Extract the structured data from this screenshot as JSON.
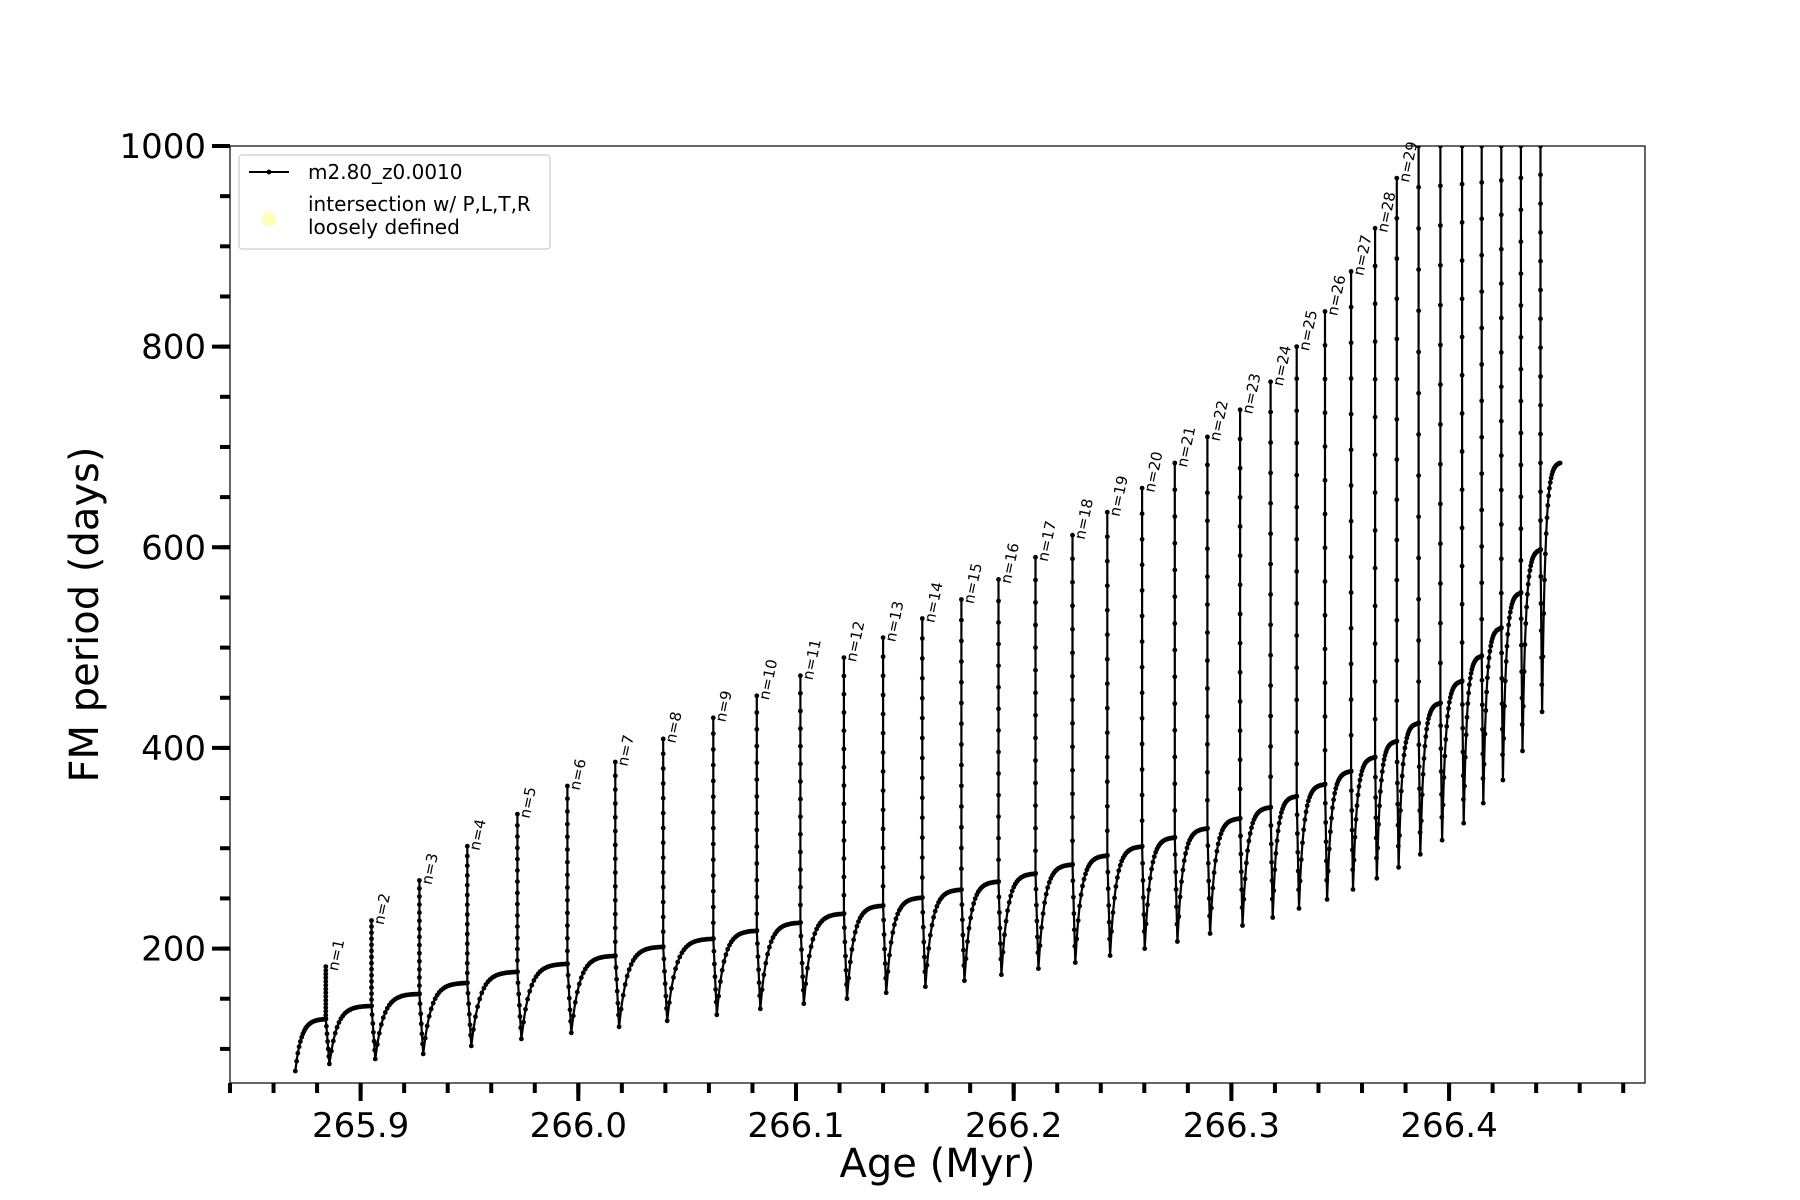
{
  "chart_data": {
    "type": "line",
    "title": "",
    "xlabel": "Age (Myr)",
    "ylabel": "FM period (days)",
    "xlim": [
      265.84,
      266.49
    ],
    "ylim": [
      66,
      1000
    ],
    "x_ticks": [
      {
        "value": 265.9,
        "label": "265.9"
      },
      {
        "value": 266.0,
        "label": "266.0"
      },
      {
        "value": 266.1,
        "label": "266.1"
      },
      {
        "value": 266.2,
        "label": "266.2"
      },
      {
        "value": 266.3,
        "label": "266.3"
      },
      {
        "value": 266.4,
        "label": "266.4"
      }
    ],
    "y_ticks": [
      {
        "value": 200,
        "label": "200"
      },
      {
        "value": 400,
        "label": "400"
      },
      {
        "value": 600,
        "label": "600"
      },
      {
        "value": 800,
        "label": "800"
      },
      {
        "value": 1000,
        "label": "1000"
      }
    ],
    "x_minor_step": 0.02,
    "y_minor_step": 50,
    "grid": false,
    "legend": {
      "placement": "top-left",
      "entries": [
        {
          "label": "m2.80_z0.0010",
          "marker": "line-dot",
          "color": "#000000"
        },
        {
          "label": "intersection w/ P,L,T,R\nloosely defined",
          "marker": "circle",
          "color": "#ffffb3"
        }
      ]
    },
    "series": [
      {
        "name": "m2.80_z0.0010",
        "color": "#000000",
        "start": {
          "age": 265.87,
          "period": 78
        },
        "pulses": [
          {
            "n": 1,
            "label": "n=1",
            "age": 265.884,
            "pre": 130,
            "peak": 182,
            "min": 85
          },
          {
            "n": 2,
            "label": "n=2",
            "age": 265.905,
            "pre": 143,
            "peak": 228,
            "min": 90
          },
          {
            "n": 3,
            "label": "n=3",
            "age": 265.927,
            "pre": 155,
            "peak": 268,
            "min": 95
          },
          {
            "n": 4,
            "label": "n=4",
            "age": 265.949,
            "pre": 166,
            "peak": 302,
            "min": 103
          },
          {
            "n": 5,
            "label": "n=5",
            "age": 265.972,
            "pre": 177,
            "peak": 334,
            "min": 110
          },
          {
            "n": 6,
            "label": "n=6",
            "age": 265.995,
            "pre": 185,
            "peak": 362,
            "min": 116
          },
          {
            "n": 7,
            "label": "n=7",
            "age": 266.017,
            "pre": 193,
            "peak": 386,
            "min": 122
          },
          {
            "n": 8,
            "label": "n=8",
            "age": 266.039,
            "pre": 202,
            "peak": 409,
            "min": 128
          },
          {
            "n": 9,
            "label": "n=9",
            "age": 266.062,
            "pre": 210,
            "peak": 430,
            "min": 134
          },
          {
            "n": 10,
            "label": "n=10",
            "age": 266.082,
            "pre": 218,
            "peak": 452,
            "min": 140
          },
          {
            "n": 11,
            "label": "n=11",
            "age": 266.102,
            "pre": 226,
            "peak": 472,
            "min": 145
          },
          {
            "n": 12,
            "label": "n=12",
            "age": 266.122,
            "pre": 235,
            "peak": 490,
            "min": 150
          },
          {
            "n": 13,
            "label": "n=13",
            "age": 266.14,
            "pre": 243,
            "peak": 510,
            "min": 156
          },
          {
            "n": 14,
            "label": "n=14",
            "age": 266.158,
            "pre": 251,
            "peak": 529,
            "min": 162
          },
          {
            "n": 15,
            "label": "n=15",
            "age": 266.176,
            "pre": 259,
            "peak": 548,
            "min": 168
          },
          {
            "n": 16,
            "label": "n=16",
            "age": 266.193,
            "pre": 267,
            "peak": 568,
            "min": 174
          },
          {
            "n": 17,
            "label": "n=17",
            "age": 266.21,
            "pre": 275,
            "peak": 590,
            "min": 180
          },
          {
            "n": 18,
            "label": "n=18",
            "age": 266.227,
            "pre": 284,
            "peak": 612,
            "min": 186
          },
          {
            "n": 19,
            "label": "n=19",
            "age": 266.243,
            "pre": 293,
            "peak": 635,
            "min": 193
          },
          {
            "n": 20,
            "label": "n=20",
            "age": 266.259,
            "pre": 302,
            "peak": 659,
            "min": 200
          },
          {
            "n": 21,
            "label": "n=21",
            "age": 266.274,
            "pre": 311,
            "peak": 684,
            "min": 207
          },
          {
            "n": 22,
            "label": "n=22",
            "age": 266.289,
            "pre": 320,
            "peak": 710,
            "min": 215
          },
          {
            "n": 23,
            "label": "n=23",
            "age": 266.304,
            "pre": 330,
            "peak": 737,
            "min": 223
          },
          {
            "n": 24,
            "label": "n=24",
            "age": 266.318,
            "pre": 341,
            "peak": 765,
            "min": 231
          },
          {
            "n": 25,
            "label": "n=25",
            "age": 266.33,
            "pre": 352,
            "peak": 800,
            "min": 240
          },
          {
            "n": 26,
            "label": "n=26",
            "age": 266.343,
            "pre": 364,
            "peak": 835,
            "min": 249
          },
          {
            "n": 27,
            "label": "n=27",
            "age": 266.355,
            "pre": 377,
            "peak": 875,
            "min": 259
          },
          {
            "n": 28,
            "label": "n=28",
            "age": 266.366,
            "pre": 391,
            "peak": 918,
            "min": 270
          },
          {
            "n": 29,
            "label": "n=29",
            "age": 266.376,
            "pre": 407,
            "peak": 968,
            "min": 281
          },
          {
            "n": 30,
            "label": "",
            "age": 266.386,
            "pre": 425,
            "peak": 1000,
            "min": 294
          },
          {
            "n": 31,
            "label": "",
            "age": 266.396,
            "pre": 445,
            "peak": 1000,
            "min": 308
          },
          {
            "n": 32,
            "label": "",
            "age": 266.406,
            "pre": 467,
            "peak": 1000,
            "min": 325
          },
          {
            "n": 33,
            "label": "",
            "age": 266.415,
            "pre": 492,
            "peak": 1000,
            "min": 345
          },
          {
            "n": 34,
            "label": "",
            "age": 266.424,
            "pre": 520,
            "peak": 1000,
            "min": 368
          },
          {
            "n": 35,
            "label": "",
            "age": 266.433,
            "pre": 555,
            "peak": 1000,
            "min": 397
          },
          {
            "n": 36,
            "label": "",
            "age": 266.442,
            "pre": 598,
            "peak": 1000,
            "min": 436
          }
        ],
        "end": {
          "age": 266.451,
          "period": 685
        }
      }
    ]
  }
}
